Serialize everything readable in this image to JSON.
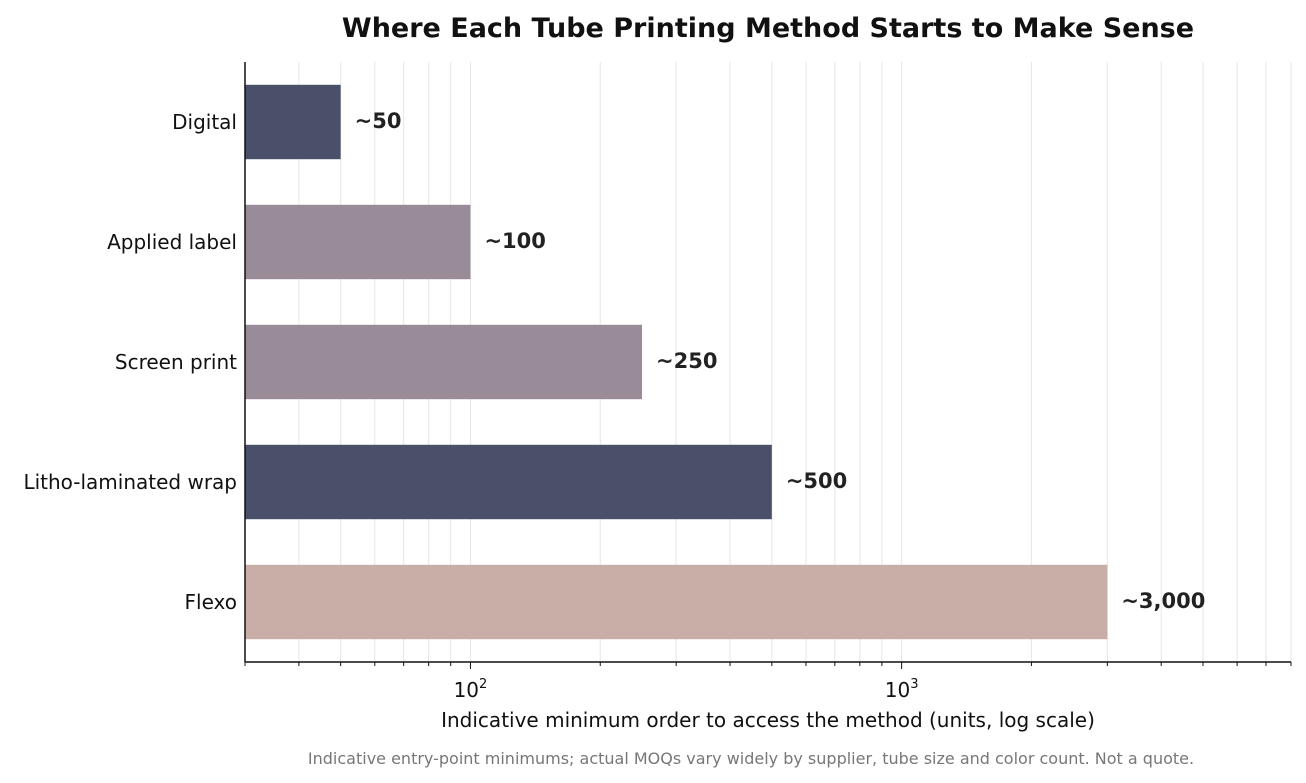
{
  "chart_data": {
    "type": "bar",
    "orientation": "horizontal",
    "title": "Where Each Tube Printing Method Starts to Make Sense",
    "xlabel": "Indicative minimum order to access the method (units, log scale)",
    "ylabel": "",
    "x_scale": "log",
    "xlim": [
      30,
      8000
    ],
    "grid": "vertical, major and minor",
    "categories": [
      "Digital",
      "Applied label",
      "Screen print",
      "Litho-laminated wrap",
      "Flexo"
    ],
    "values": [
      50,
      100,
      250,
      500,
      3000
    ],
    "value_labels": [
      "~50",
      "~100",
      "~250",
      "~500",
      "~3,000"
    ],
    "colors": [
      "#4a4f6a",
      "#9a8b98",
      "#9a8b98",
      "#4a4f6a",
      "#c8aea7"
    ],
    "x_ticks": [
      {
        "value": 100,
        "base": "10",
        "exp": "2"
      },
      {
        "value": 1000,
        "base": "10",
        "exp": "3"
      }
    ],
    "caption": "Indicative entry-point minimums; actual MOQs vary widely by supplier, tube size and color count. Not a quote."
  }
}
